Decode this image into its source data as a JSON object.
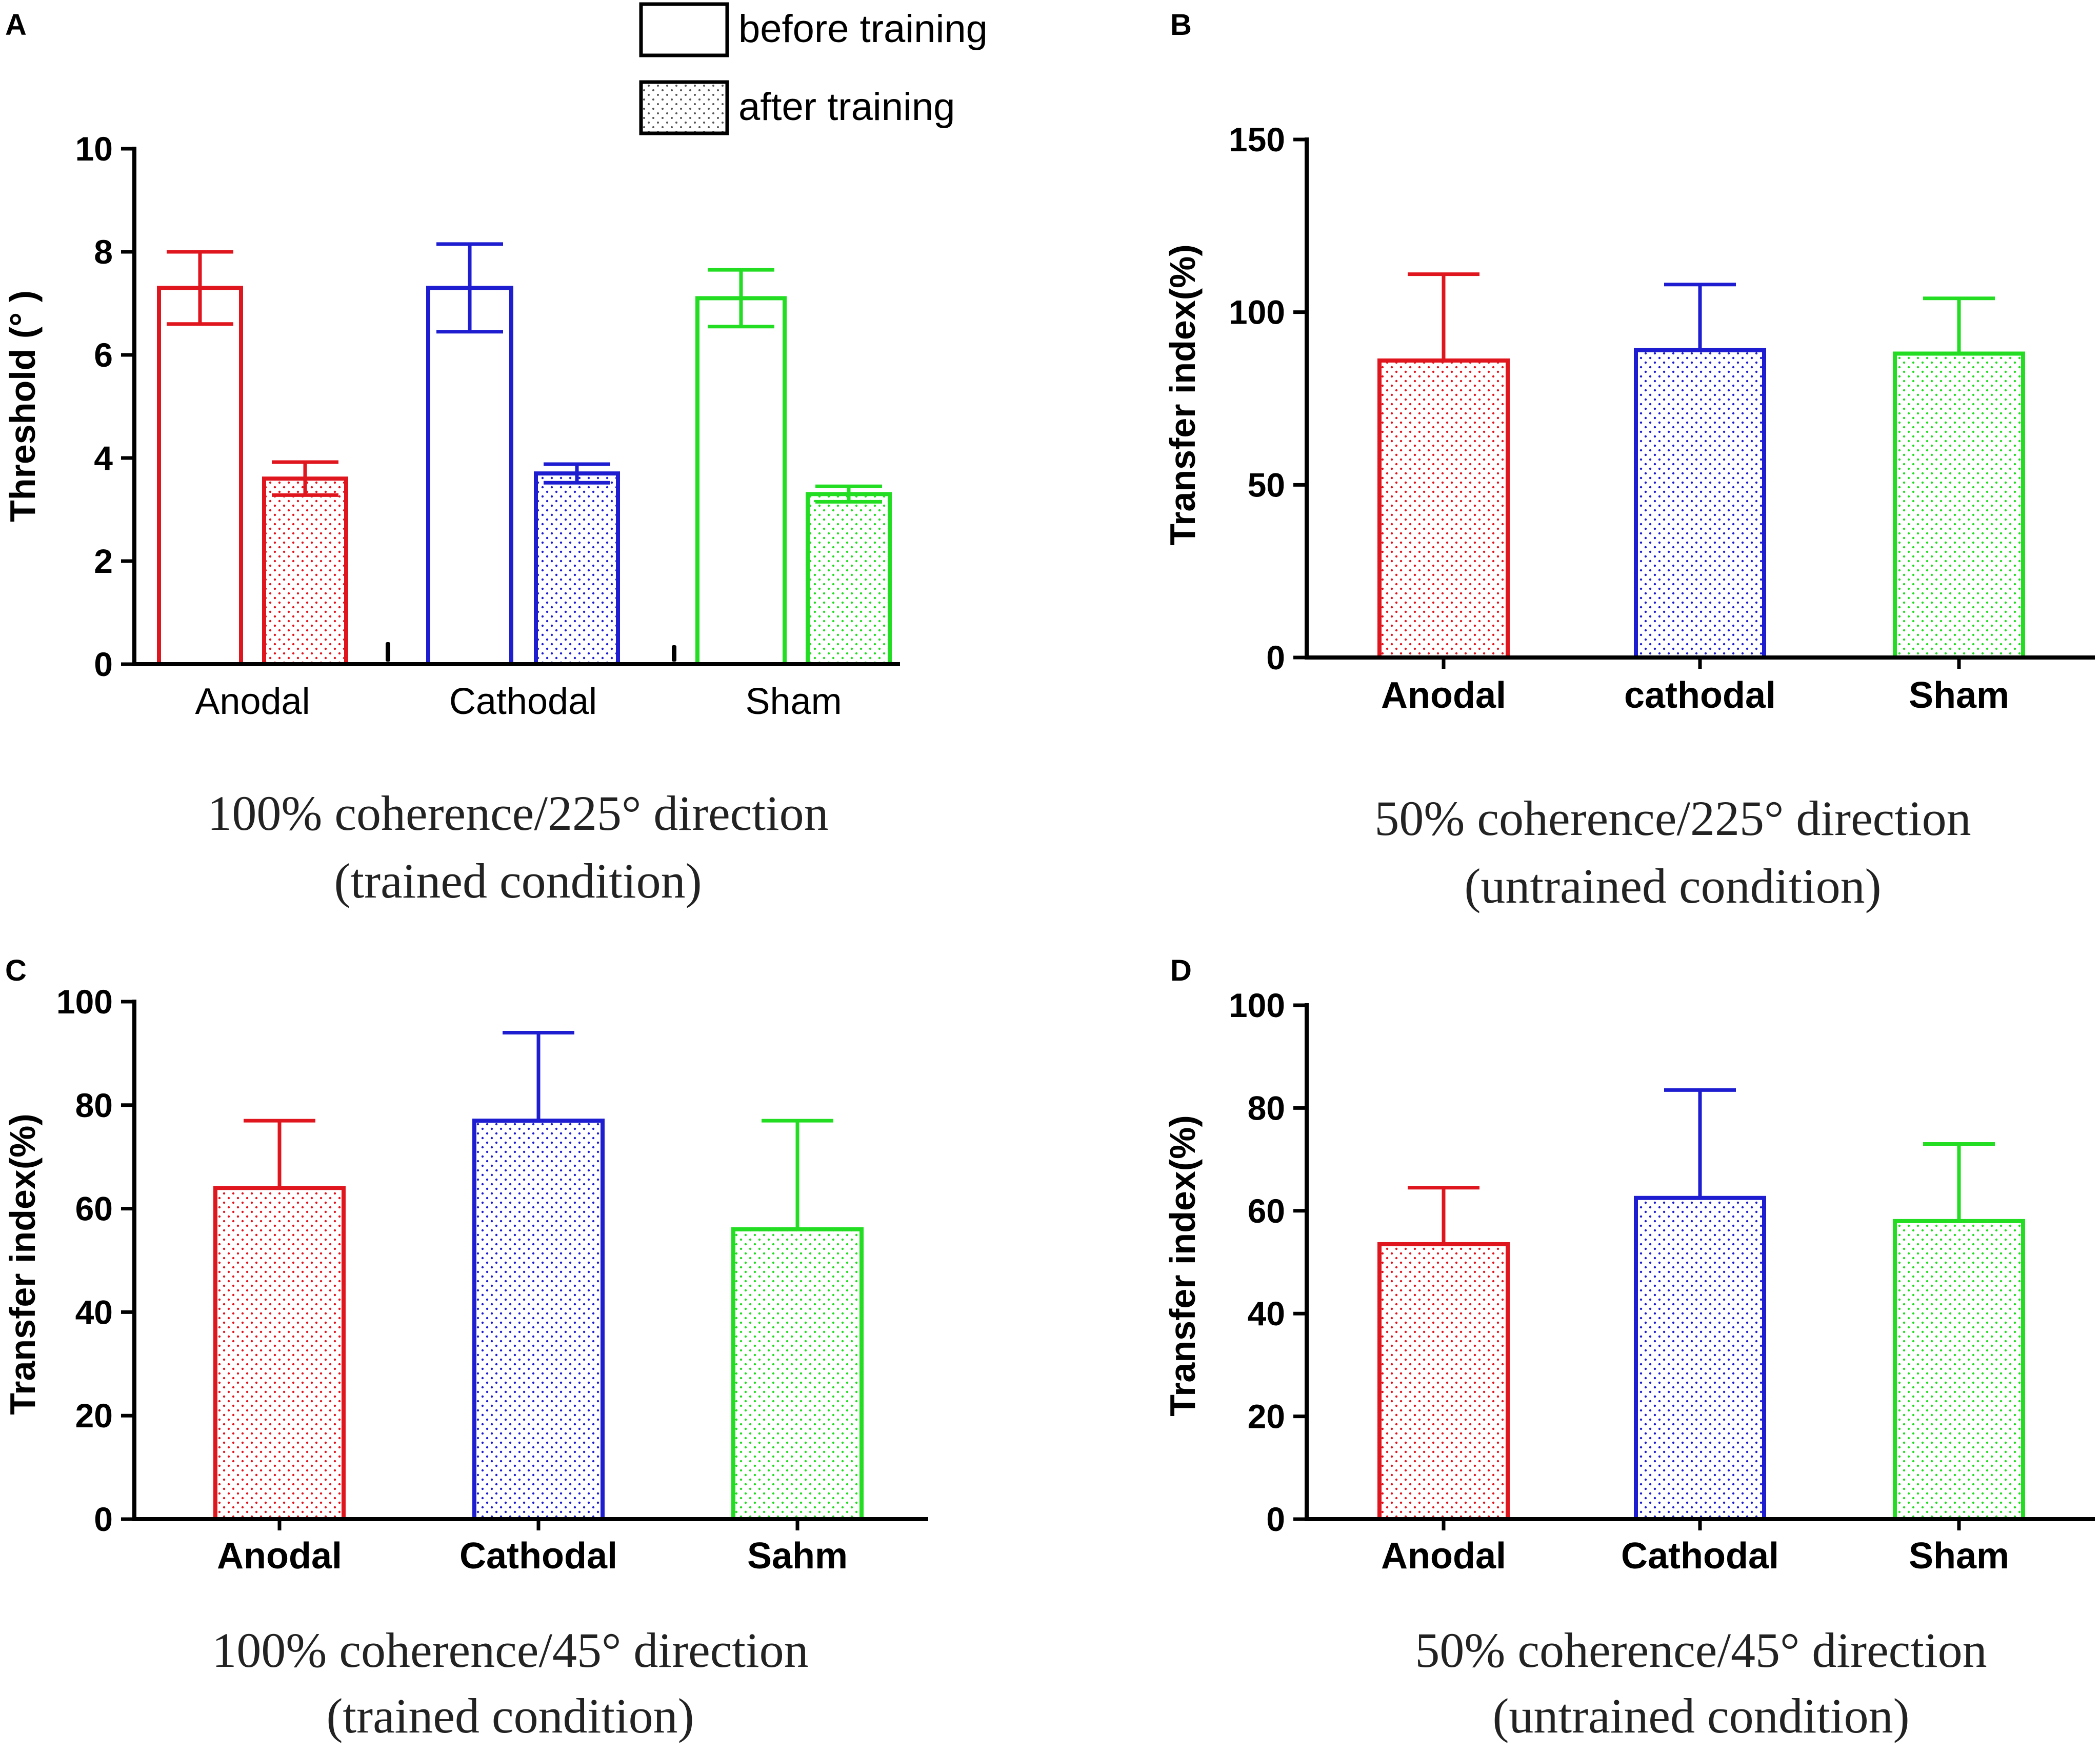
{
  "colors": {
    "anodal": "#e0161f",
    "cathodal": "#1e1ed0",
    "sham": "#22dd22",
    "axis": "#000000"
  },
  "legend": {
    "before": "before training",
    "after": "after training"
  },
  "chart_data": [
    {
      "panel": "A",
      "type": "bar",
      "ylabel": "Threshold (° )",
      "xlabel": "",
      "ylim": [
        0,
        10
      ],
      "yticks": [
        "0",
        "2",
        "4",
        "6",
        "8",
        "10"
      ],
      "categories": [
        "Anodal",
        "Cathodal",
        "Sham"
      ],
      "series": [
        {
          "name": "before training",
          "values": [
            7.3,
            7.3,
            7.1
          ],
          "errors": [
            0.7,
            0.85,
            0.55
          ]
        },
        {
          "name": "after training",
          "values": [
            3.6,
            3.7,
            3.3
          ],
          "errors": [
            0.32,
            0.18,
            0.15
          ]
        }
      ],
      "caption": [
        "100% coherence/225°  direction",
        "(trained condition)"
      ]
    },
    {
      "panel": "B",
      "type": "bar",
      "ylabel": "Transfer index(%)",
      "xlabel": "",
      "ylim": [
        0,
        150
      ],
      "yticks": [
        "0",
        "50",
        "100",
        "150"
      ],
      "categories": [
        "Anodal",
        "cathodal",
        "Sham"
      ],
      "values": [
        86,
        89,
        88
      ],
      "errors": [
        25,
        19,
        16
      ],
      "caption": [
        "50% coherence/225°  direction",
        "(untrained condition)"
      ]
    },
    {
      "panel": "C",
      "type": "bar",
      "ylabel": "Transfer index(%)",
      "xlabel": "",
      "ylim": [
        0,
        100
      ],
      "yticks": [
        "0",
        "20",
        "40",
        "60",
        "80",
        "100"
      ],
      "categories": [
        "Anodal",
        "Cathodal",
        "Sahm"
      ],
      "values": [
        64,
        77,
        56
      ],
      "errors": [
        13,
        17,
        21
      ],
      "caption": [
        "100% coherence/45°  direction",
        "(trained condition)"
      ]
    },
    {
      "panel": "D",
      "type": "bar",
      "ylabel": "Transfer index(%)",
      "xlabel": "",
      "ylim": [
        0,
        100
      ],
      "yticks": [
        "0",
        "20",
        "40",
        "60",
        "80",
        "100"
      ],
      "categories": [
        "Anodal",
        "Cathodal",
        "Sham"
      ],
      "values": [
        53.5,
        62.5,
        58
      ],
      "errors": [
        11,
        21,
        15
      ],
      "caption": [
        "50% coherence/45°  direction",
        "(untrained condition)"
      ]
    }
  ]
}
